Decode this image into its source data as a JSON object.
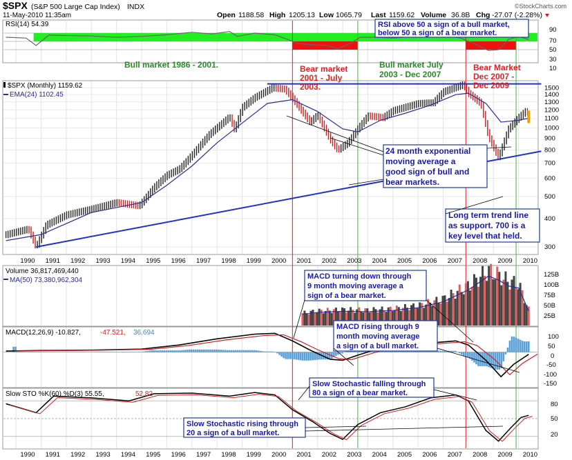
{
  "header": {
    "symbol": "$SPX",
    "name": "(S&P 500 Large Cap Index)",
    "exchange": "INDX",
    "datetime": "11-May-2010 11:35am",
    "open_label": "Open",
    "open": "1188.58",
    "high_label": "High",
    "high": "1205.13",
    "low_label": "Low",
    "low": "1065.79",
    "last_label": "Last",
    "last": "1159.62",
    "volume_label": "Volume",
    "volume": "36.8B",
    "chg_label": "Chg",
    "chg": "-27.07 (-2.28%)",
    "watermark": "©StockCharts.com"
  },
  "colors": {
    "green_zone": "#22ee22",
    "red_zone": "#ee1111",
    "blue_text": "#1a1aa8",
    "trend_line": "#1f2fcf",
    "vline_red": "#dd2222",
    "vline_green": "#33bb33",
    "annot_box": "#1a3aa0",
    "ema": "#2a2a9a",
    "vol_up": "#444444",
    "vol_down": "#e06060"
  },
  "panels": {
    "rsi": {
      "legend": "RSI(14) 54.39",
      "ticks": [
        "90",
        "70",
        "50",
        "30",
        "10"
      ]
    },
    "price": {
      "legend1": "$SPX (Monthly) 1159.62",
      "legend2": "EMA(24) 1102.45",
      "ticks": [
        "1500",
        "1400",
        "1300",
        "1200",
        "1100",
        "1000",
        "900",
        "800",
        "700",
        "600",
        "500",
        "400",
        "300"
      ]
    },
    "volume": {
      "legend1": "Volume 36,817,469,440",
      "legend2": "MA(50) 73,380,962,304",
      "ticks": [
        "125B",
        "100B",
        "75B",
        "50B",
        "25B"
      ]
    },
    "macd": {
      "legend_a": "MACD(12,26,9) -10.827,",
      "legend_b": "-47.521,",
      "legend_c": "36.694",
      "ticks": [
        "100",
        "50",
        "0",
        "-50",
        "-100",
        "-150"
      ]
    },
    "sto": {
      "legend_a": "Slow STO %K(60) %D(3) 55.55,",
      "legend_b": "52.82",
      "ticks": [
        "80",
        "50",
        "20"
      ]
    }
  },
  "x_labels": [
    "1990",
    "1991",
    "1992",
    "1993",
    "1994",
    "1995",
    "1996",
    "1997",
    "1998",
    "1999",
    "2000",
    "2001",
    "2002",
    "2003",
    "2004",
    "2005",
    "2006",
    "2007",
    "2008",
    "2009",
    "2010"
  ],
  "annotations": {
    "bull_1986": "Bull market 1986 - 2001.",
    "bear_2001_l1": "Bear market",
    "bear_2001_l2": "2001 - July",
    "bear_2001_l3": "2003.",
    "bull_2003_l1": "Bull market July",
    "bull_2003_l2": "2003 - Dec 2007",
    "bear_2007_l1": "Bear Market",
    "bear_2007_l2": "Dec 2007 -",
    "bear_2007_l3": "Dec 2009",
    "rsi_box_l1": "RSI above 50 a sign of a bull market,",
    "rsi_box_l2": "below 50 a sign of a bear market.",
    "ema_box_l1": "24 month exponential",
    "ema_box_l2": "moving average a",
    "ema_box_l3": "good sign of bull and",
    "ema_box_l4": "bear markets.",
    "trend_box_l1": "Long term trend line",
    "trend_box_l2": "as support. 700 is a",
    "trend_box_l3": "key level that held.",
    "macd_down_l1": "MACD turning down through",
    "macd_down_l2": "9 month moving average a",
    "macd_down_l3": "sign of a bear market.",
    "macd_up_l1": "MACD rising through 9",
    "macd_up_l2": "month moving average",
    "macd_up_l3": "a sign of a bull market.",
    "sto_down_l1": "Slow Stochastic falling through",
    "sto_down_l2": "80 a sign of a bear market.",
    "sto_up_l1": "Slow Stochastic rising through",
    "sto_up_l2": "20 a sign of a bull market."
  },
  "chart_data": {
    "type": "line",
    "title": "$SPX (S&P 500 Large Cap Index)",
    "timeframe": "Monthly",
    "x_range": [
      "1989-06",
      "2010-05"
    ],
    "price": {
      "scale": "log",
      "ylim": [
        280,
        1600
      ],
      "series_name": "$SPX (Monthly)",
      "last": 1159.62,
      "points": [
        [
          "1989.6",
          340
        ],
        [
          "1990.5",
          360
        ],
        [
          "1990.8",
          300
        ],
        [
          "1991.2",
          375
        ],
        [
          "1992.0",
          415
        ],
        [
          "1993.0",
          440
        ],
        [
          "1994.0",
          470
        ],
        [
          "1994.9",
          455
        ],
        [
          "1995.5",
          550
        ],
        [
          "1996.0",
          620
        ],
        [
          "1996.5",
          660
        ],
        [
          "1997.0",
          760
        ],
        [
          "1997.7",
          940
        ],
        [
          "1998.5",
          1120
        ],
        [
          "1998.7",
          980
        ],
        [
          "1999.0",
          1230
        ],
        [
          "1999.5",
          1360
        ],
        [
          "2000.2",
          1500
        ],
        [
          "2000.7",
          1480
        ],
        [
          "2001.0",
          1350
        ],
        [
          "2001.7",
          1060
        ],
        [
          "2002.0",
          1140
        ],
        [
          "2002.5",
          890
        ],
        [
          "2002.8",
          800
        ],
        [
          "2003.2",
          860
        ],
        [
          "2003.6",
          990
        ],
        [
          "2004.0",
          1130
        ],
        [
          "2004.6",
          1110
        ],
        [
          "2005.0",
          1190
        ],
        [
          "2006.0",
          1280
        ],
        [
          "2006.6",
          1290
        ],
        [
          "2007.0",
          1440
        ],
        [
          "2007.8",
          1550
        ],
        [
          "2008.0",
          1420
        ],
        [
          "2008.5",
          1280
        ],
        [
          "2008.8",
          920
        ],
        [
          "2009.2",
          740
        ],
        [
          "2009.6",
          990
        ],
        [
          "2010.0",
          1110
        ],
        [
          "2010.3",
          1190
        ],
        [
          "2010.4",
          1159.62
        ]
      ]
    },
    "ema24": {
      "name": "EMA(24)",
      "last": 1102.45,
      "points": [
        [
          "1989.6",
          320
        ],
        [
          "1991.0",
          340
        ],
        [
          "1993.0",
          425
        ],
        [
          "1995.0",
          470
        ],
        [
          "1996.0",
          560
        ],
        [
          "1997.0",
          680
        ],
        [
          "1998.0",
          860
        ],
        [
          "1999.0",
          1050
        ],
        [
          "2000.0",
          1280
        ],
        [
          "2001.0",
          1330
        ],
        [
          "2002.0",
          1180
        ],
        [
          "2003.0",
          990
        ],
        [
          "2003.6",
          960
        ],
        [
          "2004.5",
          1080
        ],
        [
          "2005.5",
          1160
        ],
        [
          "2006.5",
          1260
        ],
        [
          "2007.5",
          1400
        ],
        [
          "2008.0",
          1420
        ],
        [
          "2008.7",
          1280
        ],
        [
          "2009.3",
          1060
        ],
        [
          "2010.0",
          1080
        ],
        [
          "2010.4",
          1102.45
        ]
      ]
    },
    "trend_lines": [
      {
        "name": "long term support",
        "from": [
          "1990.8",
          300
        ],
        "to": [
          "2010.9",
          790
        ]
      },
      {
        "name": "resistance",
        "from": [
          "2000.0",
          1560
        ],
        "to": [
          "2010.9",
          1560
        ]
      }
    ],
    "rsi": {
      "name": "RSI(14)",
      "last": 54.39,
      "ylim": [
        0,
        100
      ],
      "points": [
        [
          "1989.6",
          60
        ],
        [
          "1990.4",
          58
        ],
        [
          "1990.8",
          40
        ],
        [
          "1991.3",
          65
        ],
        [
          "1993.0",
          63
        ],
        [
          "1994.0",
          60
        ],
        [
          "1995.0",
          62
        ],
        [
          "1996.0",
          66
        ],
        [
          "1997.0",
          72
        ],
        [
          "1997.8",
          68
        ],
        [
          "1998.5",
          74
        ],
        [
          "1998.8",
          62
        ],
        [
          "1999.5",
          70
        ],
        [
          "2000.3",
          66
        ],
        [
          "2000.8",
          55
        ],
        [
          "2001.2",
          45
        ],
        [
          "2001.8",
          42
        ],
        [
          "2002.4",
          40
        ],
        [
          "2002.8",
          32
        ],
        [
          "2003.3",
          45
        ],
        [
          "2003.7",
          60
        ],
        [
          "2004.3",
          60
        ],
        [
          "2005.0",
          58
        ],
        [
          "2006.0",
          62
        ],
        [
          "2007.0",
          65
        ],
        [
          "2007.7",
          58
        ],
        [
          "2008.2",
          45
        ],
        [
          "2008.8",
          28
        ],
        [
          "2009.2",
          30
        ],
        [
          "2009.6",
          55
        ],
        [
          "2010.0",
          62
        ],
        [
          "2010.4",
          54.39
        ]
      ]
    },
    "volume": {
      "name": "Volume",
      "last": 36817469440,
      "ma50_last": 73380962304,
      "ylim_billions": [
        0,
        135
      ],
      "points_billions": [
        [
          "2001.4",
          28
        ],
        [
          "2002.0",
          33
        ],
        [
          "2003.0",
          36
        ],
        [
          "2004.0",
          35
        ],
        [
          "2005.0",
          38
        ],
        [
          "2006.0",
          45
        ],
        [
          "2007.0",
          60
        ],
        [
          "2008.0",
          90
        ],
        [
          "2008.8",
          125
        ],
        [
          "2009.2",
          115
        ],
        [
          "2009.6",
          100
        ],
        [
          "2010.0",
          95
        ],
        [
          "2010.4",
          36.8
        ]
      ]
    },
    "macd": {
      "name": "MACD(12,26,9)",
      "macd_last": -10.827,
      "signal_last": -47.521,
      "hist_last": 36.694,
      "ylim": [
        -170,
        120
      ],
      "points": [
        [
          "1989.6",
          5
        ],
        [
          "1991.0",
          8
        ],
        [
          "1993.0",
          10
        ],
        [
          "1995.0",
          15
        ],
        [
          "1996.5",
          35
        ],
        [
          "1998.0",
          65
        ],
        [
          "1999.5",
          88
        ],
        [
          "2000.3",
          92
        ],
        [
          "2001.0",
          55
        ],
        [
          "2001.7",
          10
        ],
        [
          "2002.5",
          -35
        ],
        [
          "2003.0",
          -40
        ],
        [
          "2003.6",
          -15
        ],
        [
          "2004.5",
          20
        ],
        [
          "2005.5",
          30
        ],
        [
          "2006.5",
          45
        ],
        [
          "2007.5",
          55
        ],
        [
          "2008.0",
          35
        ],
        [
          "2008.7",
          -40
        ],
        [
          "2009.3",
          -120
        ],
        [
          "2009.8",
          -60
        ],
        [
          "2010.4",
          -10.827
        ]
      ]
    },
    "slow_sto": {
      "name": "Slow STO %K(60) %D(3)",
      "k_last": 55.55,
      "d_last": 52.82,
      "ylim": [
        0,
        100
      ],
      "points": [
        [
          "1989.6",
          75
        ],
        [
          "1990.8",
          60
        ],
        [
          "1991.5",
          88
        ],
        [
          "1993.0",
          85
        ],
        [
          "1994.5",
          80
        ],
        [
          "1995.5",
          92
        ],
        [
          "1997.0",
          93
        ],
        [
          "1998.5",
          88
        ],
        [
          "1999.5",
          94
        ],
        [
          "2000.3",
          90
        ],
        [
          "2001.0",
          65
        ],
        [
          "2001.8",
          45
        ],
        [
          "2002.5",
          25
        ],
        [
          "2003.0",
          15
        ],
        [
          "2003.6",
          40
        ],
        [
          "2004.5",
          60
        ],
        [
          "2005.5",
          70
        ],
        [
          "2006.5",
          85
        ],
        [
          "2007.5",
          90
        ],
        [
          "2008.0",
          80
        ],
        [
          "2008.7",
          30
        ],
        [
          "2009.2",
          12
        ],
        [
          "2009.7",
          35
        ],
        [
          "2010.1",
          52
        ],
        [
          "2010.4",
          55.55
        ]
      ]
    },
    "x_ticks": [
      1990,
      1991,
      1992,
      1993,
      1994,
      1995,
      1996,
      1997,
      1998,
      1999,
      2000,
      2001,
      2002,
      2003,
      2004,
      2005,
      2006,
      2007,
      2008,
      2009,
      2010
    ],
    "vertical_markers": [
      {
        "x": "2001.0",
        "color": "red"
      },
      {
        "x": "2003.6",
        "color": "green"
      },
      {
        "x": "2007.9",
        "color": "red"
      },
      {
        "x": "2009.9",
        "color": "green"
      }
    ],
    "zones": {
      "rsi_green": [
        50,
        70
      ],
      "bear_2001": [
        "2001.0",
        "2003.6"
      ],
      "bear_2007": [
        "2007.9",
        "2009.9"
      ]
    },
    "grid": true,
    "legend": "top-left"
  }
}
